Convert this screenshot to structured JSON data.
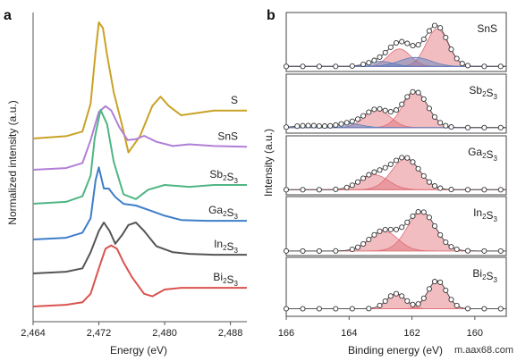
{
  "watermark": "m.aax68.com",
  "chart_data": [
    {
      "panel_label": "a",
      "type": "line",
      "xlabel": "Energy (eV)",
      "ylabel": "Normalized intensity (a.u.)",
      "xlim": [
        2464,
        2490
      ],
      "xticks": [
        2464,
        2472,
        2480,
        2488
      ],
      "xtick_labels": [
        "2,464",
        "2,472",
        "2,480",
        "2,488"
      ],
      "grid": false,
      "series": [
        {
          "name": "S",
          "name_parts": [
            [
              "S",
              ""
            ]
          ],
          "color": "#C9A227",
          "x": [
            2464,
            2468,
            2470,
            2471,
            2471.6,
            2472,
            2472.5,
            2473,
            2473.8,
            2474.8,
            2475.6,
            2477,
            2478.5,
            2479.5,
            2480.5,
            2482,
            2484,
            2486,
            2490
          ],
          "y": [
            0.0,
            0.02,
            0.06,
            0.3,
            0.75,
            1.0,
            0.95,
            0.72,
            0.4,
            0.12,
            -0.12,
            0.02,
            0.28,
            0.36,
            0.28,
            0.2,
            0.22,
            0.24,
            0.24
          ]
        },
        {
          "name": "SnS",
          "name_parts": [
            [
              "SnS",
              ""
            ]
          ],
          "color": "#B17FD6",
          "x": [
            2464,
            2468,
            2470,
            2471,
            2472,
            2472.8,
            2473.5,
            2474.5,
            2475.5,
            2476.5,
            2477.5,
            2479,
            2481,
            2483,
            2486,
            2490
          ],
          "y": [
            0.0,
            0.02,
            0.08,
            0.35,
            0.68,
            0.75,
            0.7,
            0.5,
            0.35,
            0.36,
            0.4,
            0.33,
            0.28,
            0.3,
            0.28,
            0.27
          ]
        },
        {
          "name": "Sb2S3",
          "name_parts": [
            [
              "Sb",
              "2"
            ],
            [
              "S",
              "3"
            ]
          ],
          "color": "#4FB585",
          "x": [
            2464,
            2468,
            2470,
            2471,
            2471.5,
            2472.2,
            2473,
            2473.8,
            2475,
            2476.5,
            2478,
            2480,
            2483,
            2486,
            2490
          ],
          "y": [
            0.0,
            0.02,
            0.08,
            0.3,
            0.7,
            1.0,
            0.85,
            0.45,
            0.1,
            0.05,
            0.15,
            0.2,
            0.18,
            0.2,
            0.2
          ]
        },
        {
          "name": "Ga2S3",
          "name_parts": [
            [
              "Ga",
              "2"
            ],
            [
              "S",
              "3"
            ]
          ],
          "color": "#3E7EC9",
          "x": [
            2464,
            2468,
            2470,
            2471,
            2471.6,
            2472,
            2472.6,
            2473.2,
            2474,
            2475,
            2476.5,
            2478,
            2480,
            2482,
            2485,
            2490
          ],
          "y": [
            0.0,
            0.02,
            0.08,
            0.25,
            0.7,
            0.85,
            0.6,
            0.6,
            0.5,
            0.42,
            0.4,
            0.35,
            0.28,
            0.23,
            0.22,
            0.22
          ]
        },
        {
          "name": "In2S3",
          "name_parts": [
            [
              "In",
              "2"
            ],
            [
              "S",
              "3"
            ]
          ],
          "color": "#555555",
          "x": [
            2464,
            2468,
            2470,
            2471,
            2472,
            2472.6,
            2473.3,
            2474,
            2474.8,
            2475.6,
            2476.5,
            2477.5,
            2479,
            2481,
            2483,
            2486,
            2490
          ],
          "y": [
            0.0,
            0.02,
            0.06,
            0.25,
            0.5,
            0.6,
            0.5,
            0.35,
            0.45,
            0.57,
            0.6,
            0.5,
            0.32,
            0.25,
            0.23,
            0.22,
            0.22
          ]
        },
        {
          "name": "Bi2S3",
          "name_parts": [
            [
              "Bi",
              "2"
            ],
            [
              "S",
              "3"
            ]
          ],
          "color": "#D9534F",
          "x": [
            2464,
            2468,
            2470,
            2471,
            2472,
            2472.8,
            2473.5,
            2474.2,
            2475,
            2476,
            2477.5,
            2478.5,
            2480,
            2482,
            2485,
            2490
          ],
          "y": [
            0.0,
            0.02,
            0.05,
            0.15,
            0.45,
            0.68,
            0.72,
            0.68,
            0.52,
            0.35,
            0.15,
            0.12,
            0.2,
            0.22,
            0.22,
            0.22
          ]
        }
      ]
    },
    {
      "panel_label": "b",
      "type": "scatter",
      "xlabel": "Binding energy (eV)",
      "ylabel": "Intensity (a.u.)",
      "xlim": [
        166,
        159
      ],
      "xticks": [
        166,
        164,
        162,
        160
      ],
      "xtick_labels": [
        "166",
        "164",
        "162",
        "160"
      ],
      "grid": false,
      "panels": [
        {
          "name": "SnS",
          "name_parts": [
            [
              "SnS",
              ""
            ]
          ],
          "baseline": 0.03,
          "peaks": [
            {
              "center": 161.2,
              "amplitude": 0.75,
              "width": 0.35,
              "color": "#E06C75"
            },
            {
              "center": 162.4,
              "amplitude": 0.35,
              "width": 0.35,
              "color": "#E06C75"
            },
            {
              "center": 161.9,
              "amplitude": 0.18,
              "width": 0.5,
              "color": "#5B7FBF"
            },
            {
              "center": 163.0,
              "amplitude": 0.1,
              "width": 0.4,
              "color": "#5B7FBF"
            }
          ]
        },
        {
          "name": "Sb2S3",
          "name_parts": [
            [
              "Sb",
              "2"
            ],
            [
              "S",
              "3"
            ]
          ],
          "baseline": 0.04,
          "peaks": [
            {
              "center": 161.9,
              "amplitude": 0.72,
              "width": 0.4,
              "color": "#E06C75"
            },
            {
              "center": 163.1,
              "amplitude": 0.36,
              "width": 0.4,
              "color": "#E06C75"
            },
            {
              "center": 164.0,
              "amplitude": 0.08,
              "width": 0.4,
              "color": "#5B7FBF"
            },
            {
              "center": 165.3,
              "amplitude": 0.04,
              "width": 0.4,
              "color": "#5B7FBF"
            }
          ]
        },
        {
          "name": "Ga2S3",
          "name_parts": [
            [
              "Ga",
              "2"
            ],
            [
              "S",
              "3"
            ]
          ],
          "baseline": 0.03,
          "peaks": [
            {
              "center": 162.2,
              "amplitude": 0.62,
              "width": 0.45,
              "color": "#E06C75"
            },
            {
              "center": 163.2,
              "amplitude": 0.3,
              "width": 0.45,
              "color": "#E06C75"
            }
          ]
        },
        {
          "name": "In2S3",
          "name_parts": [
            [
              "In",
              "2"
            ],
            [
              "S",
              "3"
            ]
          ],
          "baseline": 0.02,
          "peaks": [
            {
              "center": 161.7,
              "amplitude": 0.78,
              "width": 0.45,
              "color": "#E06C75"
            },
            {
              "center": 162.9,
              "amplitude": 0.4,
              "width": 0.45,
              "color": "#E06C75"
            }
          ]
        },
        {
          "name": "Bi2S3",
          "name_parts": [
            [
              "Bi",
              "2"
            ],
            [
              "S",
              "3"
            ]
          ],
          "baseline": 0.08,
          "peaks": [
            {
              "center": 161.2,
              "amplitude": 0.56,
              "width": 0.3,
              "color": "#E06C75"
            },
            {
              "center": 162.5,
              "amplitude": 0.3,
              "width": 0.3,
              "color": "#E06C75"
            }
          ]
        }
      ]
    }
  ]
}
